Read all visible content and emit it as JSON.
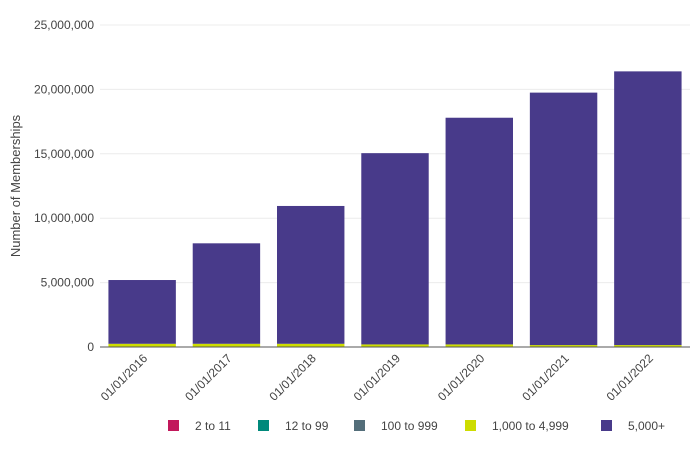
{
  "chart_data": {
    "type": "bar",
    "stacked": true,
    "categories": [
      "01/01/2016",
      "01/01/2017",
      "01/01/2018",
      "01/01/2019",
      "01/01/2020",
      "01/01/2021",
      "01/01/2022"
    ],
    "ylabel": "Number of Memberships",
    "xlabel": "",
    "ylim": [
      0,
      25000000
    ],
    "yticks": [
      0,
      5000000,
      10000000,
      15000000,
      20000000,
      25000000
    ],
    "ytick_labels": [
      "0",
      "5,000,000",
      "10,000,000",
      "15,000,000",
      "20,000,000",
      "25,000,000"
    ],
    "grid": true,
    "legend_position": "bottom",
    "series": [
      {
        "name": "2 to 11",
        "color": "#c2185b",
        "values": [
          0,
          0,
          0,
          0,
          0,
          0,
          0
        ]
      },
      {
        "name": "12 to 99",
        "color": "#00897b",
        "values": [
          0,
          0,
          0,
          0,
          0,
          0,
          0
        ]
      },
      {
        "name": "100 to 999",
        "color": "#546e7a",
        "values": [
          0,
          0,
          0,
          0,
          0,
          0,
          0
        ]
      },
      {
        "name": "1,000 to 4,999",
        "color": "#cddc00",
        "values": [
          250000,
          250000,
          250000,
          200000,
          200000,
          150000,
          150000
        ]
      },
      {
        "name": "5,000+",
        "color": "#483a8a",
        "values": [
          4950000,
          7800000,
          10700000,
          14850000,
          17600000,
          19600000,
          21250000
        ]
      }
    ]
  }
}
